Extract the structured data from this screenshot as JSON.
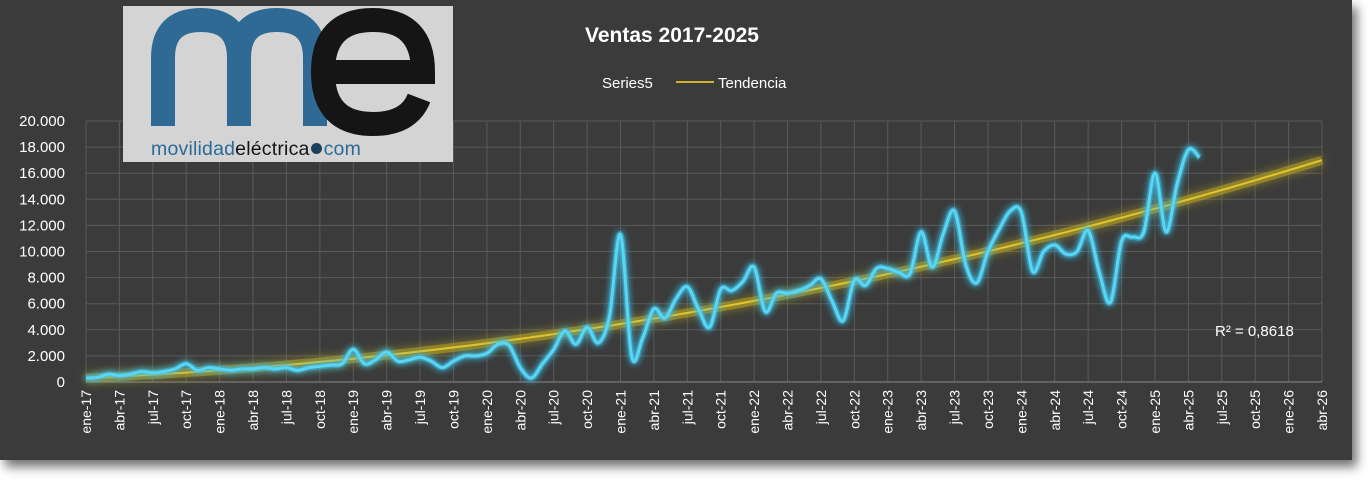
{
  "chart_data": {
    "type": "line",
    "title": "Ventas 2017-2025",
    "legend": {
      "position": "top",
      "entries": [
        {
          "name": "Series5",
          "color": "#4fd0f0"
        },
        {
          "name": "Tendencia",
          "color": "#d1b22a"
        }
      ]
    },
    "ylim": [
      0,
      20000
    ],
    "y_ticks": [
      "0",
      "2.000",
      "4.000",
      "6.000",
      "8.000",
      "10.000",
      "12.000",
      "14.000",
      "16.000",
      "18.000",
      "20.000"
    ],
    "x_ticks": [
      "ene-17",
      "abr-17",
      "jul-17",
      "oct-17",
      "ene-18",
      "abr-18",
      "jul-18",
      "oct-18",
      "ene-19",
      "abr-19",
      "jul-19",
      "oct-19",
      "ene-20",
      "abr-20",
      "jul-20",
      "oct-20",
      "ene-21",
      "abr-21",
      "jul-21",
      "oct-21",
      "ene-22",
      "abr-22",
      "jul-22",
      "oct-22",
      "ene-23",
      "abr-23",
      "jul-23",
      "oct-23",
      "ene-24",
      "abr-24",
      "jul-24",
      "oct-24",
      "ene-25",
      "abr-25",
      "jul-25",
      "oct-25",
      "ene-26",
      "abr-26"
    ],
    "grid": true,
    "series": [
      {
        "name": "Series5",
        "x_start": "ene-17",
        "values": [
          300,
          350,
          600,
          500,
          600,
          800,
          700,
          800,
          1000,
          1400,
          900,
          1100,
          1000,
          900,
          1000,
          1000,
          1100,
          1000,
          1100,
          900,
          1100,
          1200,
          1300,
          1400,
          2500,
          1400,
          1700,
          2300,
          1600,
          1700,
          1900,
          1600,
          1100,
          1600,
          2000,
          2000,
          2200,
          2900,
          2800,
          1100,
          300,
          1400,
          2500,
          3900,
          2900,
          4200,
          3000,
          5000,
          11300,
          2000,
          3400,
          5600,
          4900,
          6400,
          7300,
          5600,
          4200,
          7100,
          7000,
          7700,
          8800,
          5400,
          6800,
          6800,
          7000,
          7400,
          7900,
          6200,
          4700,
          7800,
          7400,
          8700,
          8700,
          8400,
          8300,
          11500,
          8800,
          11400,
          13100,
          9000,
          7600,
          10000,
          11700,
          13100,
          13000,
          8500,
          10000,
          10500,
          9800,
          10000,
          11600,
          8400,
          6100,
          10800,
          11100,
          11500,
          16000,
          11500,
          15200,
          17800,
          17200
        ]
      },
      {
        "name": "Tendencia",
        "type": "trend",
        "x_start": "ene-17",
        "x_end": "abr-26",
        "values": [
          300,
          17000
        ]
      }
    ],
    "annotations": [
      "R² = 0,8618"
    ]
  },
  "logo": {
    "mark": "me",
    "text_a": "movilidad",
    "text_b": "eléctrica",
    "text_c": "com"
  }
}
